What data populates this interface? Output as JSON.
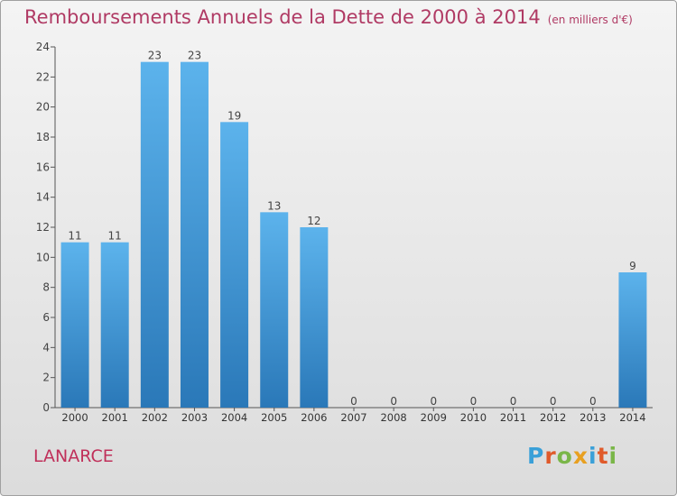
{
  "title": "Remboursements Annuels de la Dette de 2000 à 2014",
  "subtitle": "(en milliers d'€)",
  "location": "LANARCE",
  "logo": {
    "letters": [
      "P",
      "r",
      "o",
      "x",
      "i",
      "t",
      "i"
    ],
    "colors": [
      "#3aa0d8",
      "#e05a2a",
      "#7ab648",
      "#e8a020",
      "#3aa0d8",
      "#e05a2a",
      "#7ab648"
    ]
  },
  "colors": {
    "title": "#b03a64",
    "bar_top": "#5cb3ec",
    "bar_bottom": "#2a78b8"
  },
  "chart_data": {
    "type": "bar",
    "categories": [
      "2000",
      "2001",
      "2002",
      "2003",
      "2004",
      "2005",
      "2006",
      "2007",
      "2008",
      "2009",
      "2010",
      "2011",
      "2012",
      "2013",
      "2014"
    ],
    "values": [
      11,
      11,
      23,
      23,
      19,
      13,
      12,
      0,
      0,
      0,
      0,
      0,
      0,
      0,
      9
    ],
    "ylim": [
      0,
      24
    ],
    "yticks": [
      0,
      2,
      4,
      6,
      8,
      10,
      12,
      14,
      16,
      18,
      20,
      22,
      24
    ],
    "xlabel": "",
    "ylabel": "",
    "grid": false
  }
}
